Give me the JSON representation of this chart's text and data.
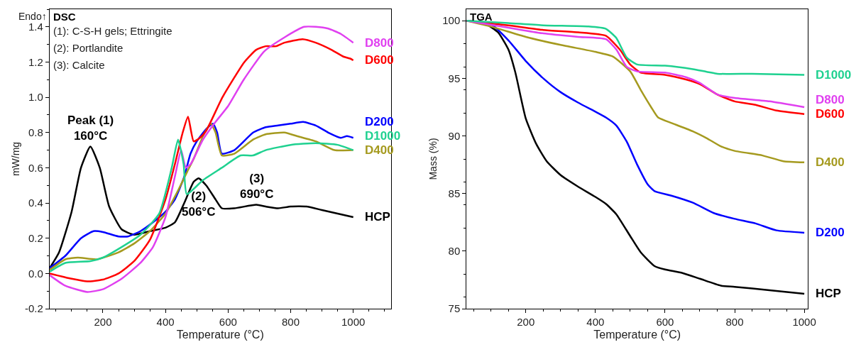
{
  "chart_data": [
    {
      "type": "line",
      "title": "DSC",
      "xlabel": "Temperature (°C)",
      "ylabel": "mW/mg",
      "xlim": [
        30,
        1120
      ],
      "ylim": [
        -0.2,
        1.5
      ],
      "xticks": [
        200,
        400,
        600,
        800,
        1000
      ],
      "yticks": [
        -0.2,
        {
          "value": 0,
          "label": "0.0"
        },
        0.2,
        0.4,
        0.6,
        0.8,
        {
          "value": 1,
          "label": "1.0"
        },
        1.2,
        1.4
      ],
      "legend": false,
      "marker": "none",
      "line_style": "solid",
      "annotations": [
        "Endo↑",
        "(1): C-S-H gels; Ettringite",
        "(2): Portlandite",
        "(3): Calcite",
        {
          "text": "Peak (1)\n160°C",
          "x": 160,
          "y": 0.72
        },
        {
          "text": "(2)\n506°C",
          "x": 506,
          "y": 0.54
        },
        {
          "text": "(3)\n690°C",
          "x": 690,
          "y": 0.39
        }
      ],
      "series": [
        {
          "name": "HCP",
          "color": "#000000",
          "x": [
            30,
            60,
            100,
            130,
            160,
            190,
            220,
            260,
            300,
            350,
            400,
            430,
            460,
            490,
            506,
            530,
            560,
            580,
            620,
            690,
            720,
            760,
            800,
            850,
            900,
            950,
            1000
          ],
          "values": [
            0.03,
            0.12,
            0.35,
            0.6,
            0.72,
            0.6,
            0.38,
            0.25,
            0.22,
            0.24,
            0.26,
            0.29,
            0.4,
            0.52,
            0.54,
            0.5,
            0.42,
            0.37,
            0.37,
            0.39,
            0.38,
            0.37,
            0.38,
            0.38,
            0.36,
            0.34,
            0.32
          ]
        },
        {
          "name": "D200",
          "color": "#0000ff",
          "x": [
            30,
            80,
            130,
            170,
            200,
            250,
            280,
            320,
            360,
            400,
            430,
            460,
            480,
            500,
            530,
            552,
            565,
            580,
            620,
            680,
            720,
            760,
            800,
            840,
            880,
            920,
            960,
            980,
            1000
          ],
          "values": [
            0.03,
            0.1,
            0.2,
            0.24,
            0.235,
            0.21,
            0.21,
            0.24,
            0.29,
            0.35,
            0.42,
            0.55,
            0.68,
            0.75,
            0.82,
            0.85,
            0.8,
            0.68,
            0.7,
            0.8,
            0.83,
            0.84,
            0.85,
            0.86,
            0.84,
            0.8,
            0.77,
            0.78,
            0.77
          ]
        },
        {
          "name": "D400",
          "color": "#a59a1f",
          "x": [
            30,
            80,
            120,
            180,
            250,
            300,
            350,
            400,
            440,
            470,
            490,
            520,
            545,
            560,
            580,
            620,
            680,
            720,
            780,
            820,
            880,
            940,
            1000
          ],
          "values": [
            0.02,
            0.08,
            0.09,
            0.08,
            0.12,
            0.17,
            0.24,
            0.34,
            0.47,
            0.58,
            0.65,
            0.78,
            0.85,
            0.8,
            0.67,
            0.68,
            0.76,
            0.79,
            0.8,
            0.78,
            0.75,
            0.7,
            0.7
          ]
        },
        {
          "name": "D600",
          "color": "#ff0000",
          "x": [
            30,
            100,
            150,
            200,
            250,
            300,
            350,
            400,
            430,
            455,
            472,
            490,
            510,
            530,
            582,
            652,
            690,
            720,
            754,
            780,
            838,
            880,
            930,
            970,
            990,
            1000
          ],
          "values": [
            0.0,
            -0.03,
            -0.045,
            -0.035,
            0.0,
            0.07,
            0.19,
            0.42,
            0.62,
            0.8,
            0.89,
            0.75,
            0.77,
            0.81,
            1.0,
            1.2,
            1.27,
            1.29,
            1.29,
            1.31,
            1.33,
            1.31,
            1.27,
            1.23,
            1.22,
            1.21
          ]
        },
        {
          "name": "D800",
          "color": "#e040f0",
          "x": [
            30,
            80,
            150,
            200,
            260,
            320,
            360,
            400,
            430,
            450,
            465,
            480,
            520,
            560,
            600,
            650,
            715,
            780,
            843,
            880,
            920,
            960,
            1000
          ],
          "values": [
            -0.01,
            -0.07,
            -0.105,
            -0.09,
            -0.03,
            0.06,
            0.15,
            0.32,
            0.55,
            0.7,
            0.6,
            0.62,
            0.76,
            0.86,
            0.95,
            1.1,
            1.26,
            1.34,
            1.4,
            1.4,
            1.39,
            1.36,
            1.31
          ]
        },
        {
          "name": "D1000",
          "color": "#1fd190",
          "x": [
            30,
            80,
            160,
            200,
            260,
            320,
            380,
            420,
            440,
            458,
            468,
            520,
            580,
            640,
            680,
            720,
            800,
            880,
            950,
            1000
          ],
          "values": [
            0.01,
            0.06,
            0.07,
            0.09,
            0.15,
            0.22,
            0.34,
            0.6,
            0.76,
            0.62,
            0.45,
            0.53,
            0.6,
            0.67,
            0.67,
            0.7,
            0.73,
            0.74,
            0.73,
            0.7
          ]
        }
      ]
    },
    {
      "type": "line",
      "title": "TGA",
      "xlabel": "Temperature (°C)",
      "ylabel": "Mass (%)",
      "xlim": [
        30,
        1010
      ],
      "ylim": [
        75,
        101
      ],
      "xticks": [
        200,
        400,
        600,
        800,
        1000
      ],
      "yticks": [
        75,
        80,
        85,
        90,
        95,
        100
      ],
      "legend": false,
      "marker": "none",
      "line_style": "solid",
      "series": [
        {
          "name": "HCP",
          "color": "#000000",
          "x": [
            30,
            80,
            120,
            150,
            170,
            200,
            230,
            260,
            300,
            350,
            400,
            430,
            460,
            500,
            530,
            570,
            600,
            650,
            700,
            760,
            800,
            900,
            1000
          ],
          "values": [
            100,
            99.8,
            99,
            97.5,
            95.5,
            91.5,
            89.3,
            87.8,
            86.6,
            85.6,
            84.7,
            84.1,
            83.2,
            81.3,
            79.9,
            78.7,
            78.4,
            78.1,
            77.6,
            77.0,
            76.9,
            76.6,
            76.3
          ]
        },
        {
          "name": "D200",
          "color": "#0000ff",
          "x": [
            30,
            100,
            150,
            200,
            250,
            300,
            350,
            400,
            430,
            460,
            490,
            520,
            550,
            570,
            620,
            680,
            740,
            800,
            860,
            920,
            1000
          ],
          "values": [
            100,
            99.7,
            98.3,
            96.5,
            95,
            93.8,
            92.9,
            92.1,
            91.6,
            90.9,
            89.5,
            87.5,
            85.8,
            85.2,
            84.8,
            84.2,
            83.3,
            82.8,
            82.4,
            81.8,
            81.6
          ]
        },
        {
          "name": "D400",
          "color": "#a59a1f",
          "x": [
            30,
            100,
            200,
            300,
            400,
            450,
            500,
            530,
            560,
            580,
            620,
            680,
            720,
            760,
            800,
            880,
            940,
            1000
          ],
          "values": [
            100,
            99.5,
            98.6,
            97.9,
            97.3,
            96.9,
            95.6,
            94.0,
            92.5,
            91.6,
            91.1,
            90.4,
            89.8,
            89.1,
            88.7,
            88.3,
            87.8,
            87.7
          ]
        },
        {
          "name": "D600",
          "color": "#ff0000",
          "x": [
            30,
            150,
            250,
            350,
            430,
            470,
            500,
            530,
            600,
            660,
            700,
            750,
            800,
            860,
            920,
            1000
          ],
          "values": [
            100,
            99.6,
            99.2,
            99.0,
            98.7,
            97.5,
            96.2,
            95.5,
            95.3,
            94.9,
            94.5,
            93.6,
            93.0,
            92.7,
            92.2,
            91.9
          ]
        },
        {
          "name": "D800",
          "color": "#e040f0",
          "x": [
            30,
            150,
            250,
            350,
            430,
            460,
            490,
            520,
            600,
            660,
            700,
            750,
            800,
            900,
            1000
          ],
          "values": [
            100,
            99.4,
            98.9,
            98.6,
            98.4,
            97.5,
            96.0,
            95.6,
            95.5,
            95.1,
            94.6,
            93.6,
            93.3,
            93.0,
            92.5
          ]
        },
        {
          "name": "D1000",
          "color": "#1fd190",
          "x": [
            30,
            150,
            250,
            380,
            430,
            460,
            490,
            520,
            600,
            680,
            750,
            850,
            1000
          ],
          "values": [
            100,
            99.8,
            99.6,
            99.5,
            99.3,
            98.5,
            96.8,
            96.2,
            96.1,
            95.8,
            95.4,
            95.4,
            95.3
          ]
        }
      ]
    }
  ]
}
